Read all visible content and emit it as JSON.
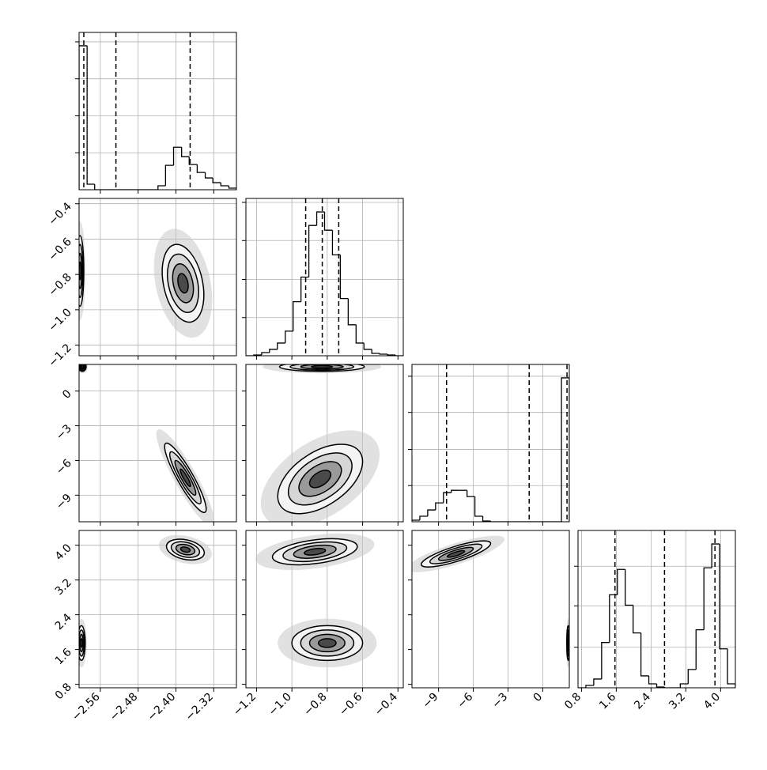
{
  "chart_data": {
    "type": "corner",
    "grid": true,
    "color": "#000000",
    "params": [
      {
        "lim": [
          -2.605,
          -2.272
        ],
        "ticks": [
          {
            "value": -2.56,
            "label": "−2.56"
          },
          {
            "value": -2.48,
            "label": "−2.48"
          },
          {
            "value": -2.4,
            "label": "−2.40"
          },
          {
            "value": -2.32,
            "label": "−2.32"
          }
        ],
        "bins": [
          -2.605,
          -2.588,
          -2.572,
          -2.555,
          -2.538,
          -2.522,
          -2.505,
          -2.488,
          -2.472,
          -2.455,
          -2.438,
          -2.422,
          -2.405,
          -2.388,
          -2.372,
          -2.355,
          -2.338,
          -2.322,
          -2.305,
          -2.288,
          -2.272
        ],
        "counts": [
          183,
          7,
          0,
          0,
          0,
          0,
          0,
          0,
          0,
          0,
          5,
          31,
          54,
          42,
          32,
          22,
          15,
          9,
          5,
          2
        ],
        "hist_ylim": [
          0,
          200
        ],
        "hist_yticks": [
          47,
          94,
          141,
          188
        ],
        "quantiles": [
          -2.595,
          -2.527,
          -2.37
        ]
      },
      {
        "lim": [
          -1.26,
          -0.37
        ],
        "ticks": [
          {
            "value": -1.2,
            "label": "−1.2"
          },
          {
            "value": -1.0,
            "label": "−1.0"
          },
          {
            "value": -0.8,
            "label": "−0.8"
          },
          {
            "value": -0.6,
            "label": "−0.6"
          },
          {
            "value": -0.4,
            "label": "−0.4"
          }
        ],
        "bins": [
          -1.26,
          -1.2155,
          -1.171,
          -1.1265,
          -1.082,
          -1.0375,
          -0.993,
          -0.9485,
          -0.904,
          -0.8595,
          -0.815,
          -0.7705,
          -0.726,
          -0.6815,
          -0.637,
          -0.5925,
          -0.548,
          -0.5035,
          -0.459,
          -0.4145,
          -0.37
        ],
        "counts": [
          0,
          1,
          4,
          8,
          16,
          31,
          68,
          99,
          164,
          181,
          158,
          127,
          72,
          39,
          16,
          8,
          3,
          2,
          1,
          0
        ],
        "hist_ylim": [
          0,
          198
        ],
        "hist_yticks": [
          48,
          96,
          145,
          193
        ],
        "quantiles": [
          -0.922,
          -0.828,
          -0.735
        ]
      },
      {
        "lim": [
          -11.3,
          2.3
        ],
        "ticks": [
          {
            "value": -9,
            "label": "−9"
          },
          {
            "value": -6,
            "label": "−6"
          },
          {
            "value": -3,
            "label": "−3"
          },
          0
        ],
        "bins": [
          -11.3,
          -10.62,
          -9.94,
          -9.26,
          -8.58,
          -7.9,
          -7.22,
          -6.54,
          -5.86,
          -5.18,
          -4.5,
          -3.82,
          -3.14,
          -2.46,
          -1.78,
          -1.1,
          -0.42,
          0.26,
          0.94,
          1.62,
          2.3
        ],
        "counts": [
          2,
          7,
          15,
          24,
          37,
          40,
          40,
          32,
          7,
          1,
          0,
          0,
          0,
          0,
          0,
          0,
          0,
          0,
          0,
          183
        ],
        "hist_ylim": [
          0,
          200
        ],
        "hist_yticks": [
          46,
          92,
          139,
          185
        ],
        "quantiles": [
          -8.31,
          -1.17,
          2.1
        ]
      },
      {
        "lim": [
          0.72,
          4.34
        ],
        "ticks": [
          0.8,
          1.6,
          2.4,
          3.2,
          {
            "value": 4.0,
            "label": "4.0"
          }
        ],
        "bins": [
          0.72,
          0.901,
          1.082,
          1.263,
          1.444,
          1.625,
          1.806,
          1.987,
          2.168,
          2.349,
          2.53,
          2.711,
          2.892,
          3.073,
          3.254,
          3.435,
          3.616,
          3.797,
          3.978,
          4.159,
          4.34
        ],
        "counts": [
          0,
          3,
          11,
          57,
          117,
          149,
          104,
          69,
          15,
          5,
          1,
          0,
          0,
          5,
          23,
          73,
          151,
          181,
          49,
          5
        ],
        "hist_ylim": [
          0,
          198
        ],
        "hist_yticks": [
          51,
          103,
          153
        ],
        "quantiles": [
          1.57,
          2.71,
          3.87
        ]
      }
    ],
    "panels": [
      {
        "blobs": [
          {
            "center": [
              -2.603,
              -0.78
            ],
            "sigma": [
              0.004,
              0.1
            ],
            "rho": 0
          },
          {
            "center": [
              -2.385,
              -0.85
            ],
            "sigma": [
              0.022,
              0.11
            ],
            "rho": -0.3
          }
        ]
      },
      {
        "blobs": [
          {
            "center": [
              -2.598,
              2.1
            ],
            "sigma": [
              0.004,
              0.2
            ],
            "rho": 0
          },
          {
            "center": [
              -2.38,
              -7.5
            ],
            "sigma": [
              0.022,
              1.5
            ],
            "rho": -0.9
          }
        ]
      },
      {
        "blobs": [
          {
            "center": [
              -0.83,
              2.1
            ],
            "sigma": [
              0.12,
              0.2
            ],
            "rho": 0
          },
          {
            "center": [
              -0.84,
              -7.6
            ],
            "sigma": [
              0.12,
              1.5
            ],
            "rho": 0.5
          }
        ]
      },
      {
        "blobs": [
          {
            "center": [
              -2.6,
              1.75
            ],
            "sigma": [
              0.004,
              0.2
            ],
            "rho": 0
          },
          {
            "center": [
              -2.38,
              3.9
            ],
            "sigma": [
              0.02,
              0.12
            ],
            "rho": -0.3
          }
        ]
      },
      {
        "blobs": [
          {
            "center": [
              -0.87,
              3.85
            ],
            "sigma": [
              0.12,
              0.15
            ],
            "rho": 0.4
          },
          {
            "center": [
              -0.8,
              1.75
            ],
            "sigma": [
              0.1,
              0.2
            ],
            "rho": 0
          }
        ]
      },
      {
        "blobs": [
          {
            "center": [
              -7.5,
              3.8
            ],
            "sigma": [
              1.5,
              0.15
            ],
            "rho": 0.8
          },
          {
            "center": [
              2.2,
              1.75
            ],
            "sigma": [
              0.06,
              0.2
            ],
            "rho": 0
          }
        ]
      }
    ]
  }
}
